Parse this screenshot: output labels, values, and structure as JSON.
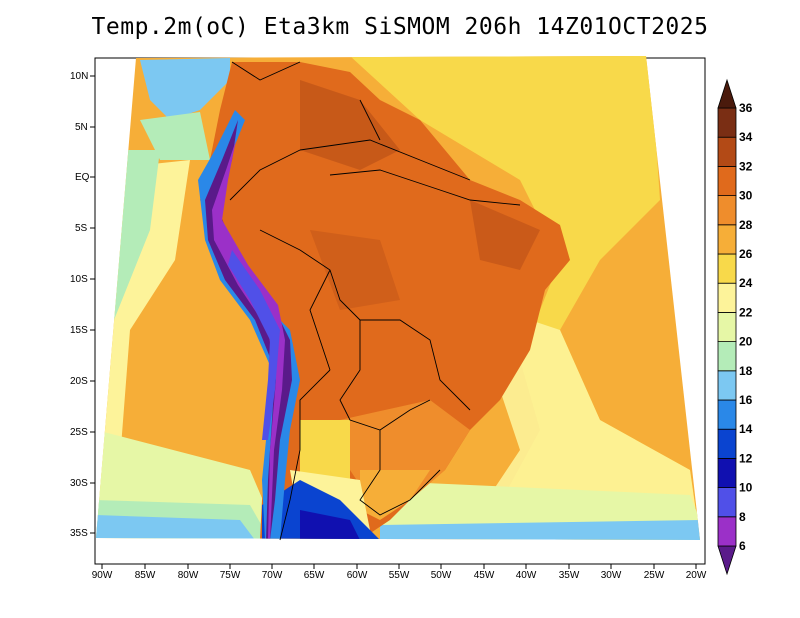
{
  "title": "Temp.2m(oC) Eta3km SiSMOM 206h 14Z01OCT2025",
  "lat_labels": [
    "10N",
    "5N",
    "EQ",
    "5S",
    "10S",
    "15S",
    "20S",
    "25S",
    "30S",
    "35S"
  ],
  "lon_labels": [
    "90W",
    "85W",
    "80W",
    "75W",
    "70W",
    "65W",
    "60W",
    "55W",
    "50W",
    "45W",
    "40W",
    "35W",
    "30W",
    "25W",
    "20W"
  ],
  "colorbar": {
    "labels": [
      "6",
      "8",
      "10",
      "12",
      "14",
      "16",
      "18",
      "20",
      "22",
      "24",
      "26",
      "28",
      "30",
      "32",
      "34",
      "36"
    ],
    "colors": [
      "#5a1a8a",
      "#9b30c8",
      "#5050e8",
      "#1010b0",
      "#0a44d0",
      "#2a88e8",
      "#7cc8f2",
      "#b4ecb8",
      "#e6f7a6",
      "#fdf39a",
      "#f8d94a",
      "#f6ae38",
      "#ef8d2c",
      "#e06a1c",
      "#b34a16",
      "#7a2e14",
      "#4a1a0c"
    ]
  },
  "map_data": {
    "variable": "2 m temperature",
    "units": "oC",
    "model": "Eta3km SiSMOM",
    "forecast_hour": "206h",
    "valid": "14Z01OCT2025",
    "lon_range": [
      -90,
      -20
    ],
    "lat_range": [
      -37,
      12
    ]
  }
}
